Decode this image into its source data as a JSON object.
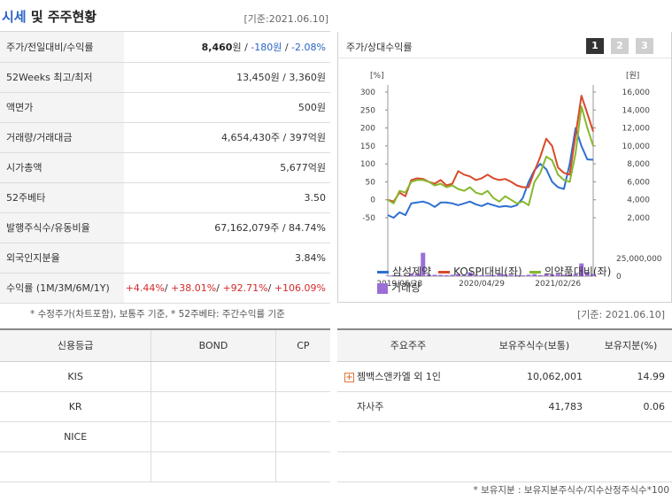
{
  "header": {
    "title_accent": "시세",
    "title_rest": "및 주주현황",
    "date": "[기준:2021.06.10]"
  },
  "info_rows": [
    {
      "label": "주가/전일대비/수익률",
      "price": "8,460",
      "unit": "원 / ",
      "change": "-180원",
      "rate": "-2.08%"
    },
    {
      "label": "52Weeks 최고/최저",
      "value": "13,450원 / 3,360원"
    },
    {
      "label": "액면가",
      "value": "500원"
    },
    {
      "label": "거래량/거래대금",
      "value": "4,654,430주 / 397억원"
    },
    {
      "label": "시가총액",
      "value": "5,677억원"
    },
    {
      "label": "52주베타",
      "value": "3.50"
    },
    {
      "label": "발행주식수/유동비율",
      "value": "67,162,079주 / 84.74%"
    },
    {
      "label": "외국인지분율",
      "value": "3.84%"
    },
    {
      "label": "수익률 (1M/3M/6M/1Y)",
      "values": [
        "+4.44%",
        "+38.01%",
        "+92.71%",
        "+106.09%"
      ]
    }
  ],
  "notes": "* 수정주가(차트포함), 보통주 기준, * 52주베타: 주간수익률 기준",
  "chart_panel": {
    "label": "주가/상대수익률",
    "pages": [
      "1",
      "2",
      "3"
    ]
  },
  "chart_data": {
    "type": "line",
    "title": "주가/상대수익률",
    "left_unit": "[%]",
    "right_unit": "[원]",
    "left_ylim": [
      -50,
      300
    ],
    "left_ticks": [
      "300",
      "250",
      "200",
      "150",
      "100",
      "50",
      "0",
      "-50"
    ],
    "right_ylim": [
      2000,
      16000
    ],
    "right_ticks": [
      "16,000",
      "14,000",
      "12,000",
      "10,000",
      "8,000",
      "6,000",
      "4,000",
      "2,000"
    ],
    "volume_tick": "25,000,000",
    "volume_zero": "0",
    "volume_max": 40000000,
    "x_labels": [
      "2019/06/28",
      "2020/04/29",
      "2021/02/26"
    ],
    "x": [
      0,
      1,
      2,
      3,
      4,
      5,
      6,
      7,
      8,
      9,
      10,
      11,
      12,
      13,
      14,
      15,
      16,
      17,
      18,
      19,
      20,
      21,
      22,
      23,
      24,
      25,
      26,
      27,
      28,
      29,
      30,
      31,
      32,
      33,
      34,
      35
    ],
    "series": [
      {
        "name": "삼성제약",
        "axis": "right",
        "color": "#2e6fd0",
        "values": [
          2300,
          2000,
          2600,
          2300,
          3600,
          3700,
          3800,
          3600,
          3200,
          3700,
          3700,
          3600,
          3400,
          3600,
          3800,
          3500,
          3300,
          3600,
          3400,
          3200,
          3300,
          3200,
          3400,
          4200,
          6000,
          7300,
          8000,
          7400,
          6000,
          5400,
          5200,
          8000,
          12000,
          10000,
          8500,
          8460
        ]
      },
      {
        "name": "KOSPI대비(좌)",
        "axis": "left",
        "color": "#d94a2a",
        "values": [
          0,
          -5,
          20,
          10,
          55,
          60,
          58,
          50,
          45,
          55,
          40,
          45,
          80,
          70,
          65,
          55,
          60,
          70,
          60,
          55,
          58,
          50,
          40,
          35,
          35,
          80,
          120,
          170,
          150,
          90,
          75,
          70,
          180,
          290,
          240,
          190
        ]
      },
      {
        "name": "의약품대비(좌)",
        "axis": "left",
        "color": "#86b82e",
        "values": [
          0,
          -10,
          25,
          20,
          50,
          55,
          55,
          50,
          40,
          45,
          35,
          40,
          30,
          25,
          35,
          20,
          15,
          25,
          5,
          -5,
          10,
          0,
          -10,
          -5,
          -15,
          50,
          75,
          120,
          110,
          70,
          55,
          50,
          130,
          260,
          200,
          150
        ]
      }
    ],
    "volume_series": {
      "name": "거래량",
      "color": "#9b6fd6",
      "values": [
        800000,
        1500000,
        1200000,
        1000000,
        4000000,
        3500000,
        33000000,
        2500000,
        2000000,
        1800000,
        1500000,
        2000000,
        3000000,
        1500000,
        5500000,
        2000000,
        1500000,
        1800000,
        1500000,
        4000000,
        2500000,
        2000000,
        1500000,
        1200000,
        2000000,
        3000000,
        1500000,
        3000000,
        2500000,
        3500000,
        2000000,
        2500000,
        3000000,
        18000000,
        6000000,
        3000000
      ]
    }
  },
  "right_date": "[기준: 2021.06.10]",
  "credit": {
    "headers": [
      "신용등급",
      "BOND",
      "CP"
    ],
    "rows": [
      [
        "KIS",
        "",
        ""
      ],
      [
        "KR",
        "",
        ""
      ],
      [
        "NICE",
        "",
        ""
      ],
      [
        "",
        "",
        ""
      ]
    ]
  },
  "holders": {
    "headers": [
      "주요주주",
      "보유주식수(보통)",
      "보유지분(%)"
    ],
    "rows": [
      {
        "name": "젬백스앤카엘 외 1인",
        "shares": "10,062,001",
        "pct": "14.99",
        "expand": "+"
      },
      {
        "name": "자사주",
        "shares": "41,783",
        "pct": "0.06"
      },
      {
        "name": "",
        "shares": "",
        "pct": ""
      },
      {
        "name": "",
        "shares": "",
        "pct": ""
      }
    ]
  },
  "bottom_note": "* 보유지분 : 보유지분주식수/지수산정주식수*100"
}
